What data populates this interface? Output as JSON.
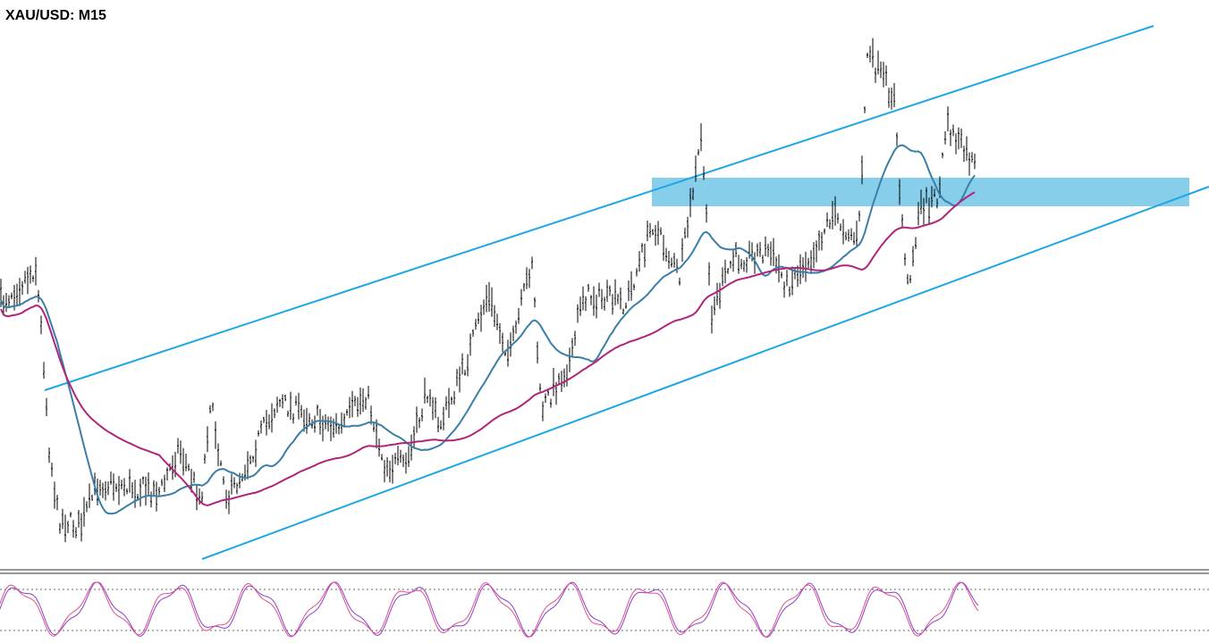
{
  "header": {
    "title": "XAU/USD: M15"
  }
}
